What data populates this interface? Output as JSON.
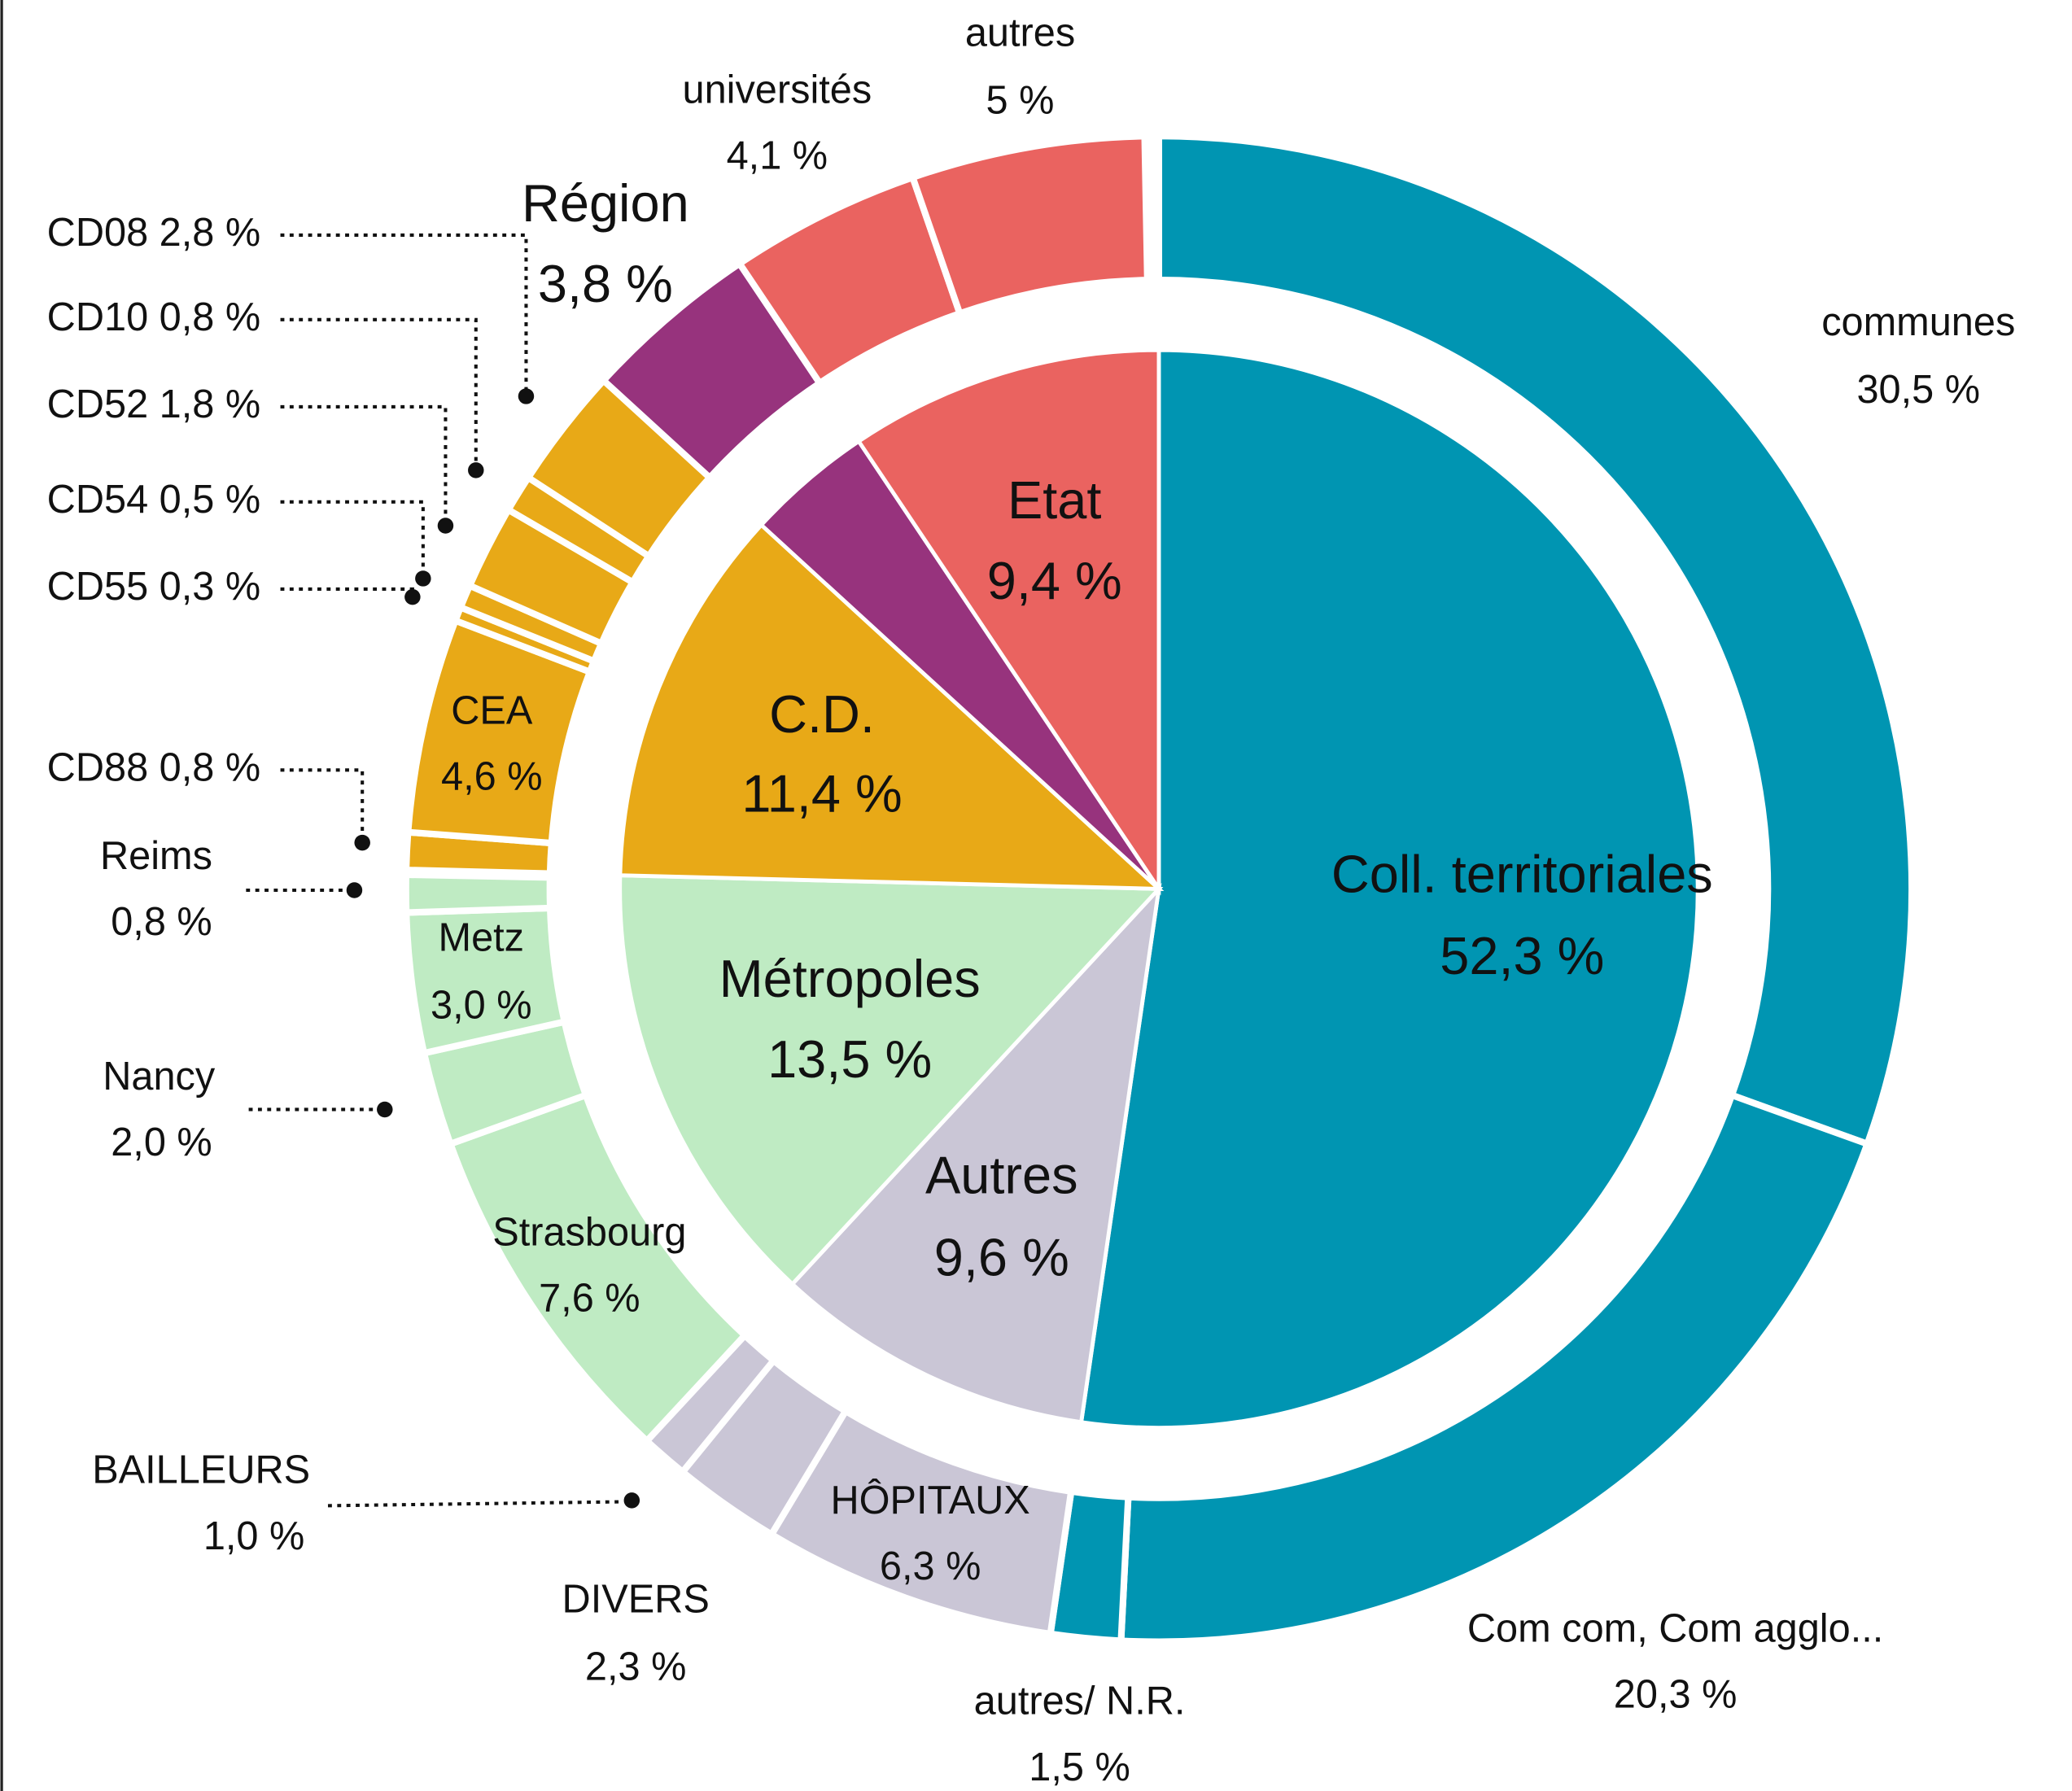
{
  "chart_data": {
    "type": "sunburst",
    "segments": [
      {
        "name": "Coll. territoriales",
        "value": 52.3,
        "value_label": "52,3 %",
        "color": "#0095b2",
        "children": [
          {
            "name": "communes",
            "value": 30.5,
            "value_label": "30,5 %"
          },
          {
            "name": "Com com, Com agglo...",
            "value": 20.3,
            "value_label": "20,3 %"
          },
          {
            "name": "autres/ N.R.",
            "value": 1.5,
            "value_label": "1,5 %"
          }
        ]
      },
      {
        "name": "Autres",
        "value": 9.6,
        "value_label": "9,6 %",
        "color": "#cac6d6",
        "children": [
          {
            "name": "HÔPITAUX",
            "value": 6.3,
            "value_label": "6,3 %"
          },
          {
            "name": "DIVERS",
            "value": 2.3,
            "value_label": "2,3 %"
          },
          {
            "name": "BAILLEURS",
            "value": 1.0,
            "value_label": "1,0 %"
          }
        ]
      },
      {
        "name": "Métropoles",
        "value": 13.5,
        "value_label": "13,5 %",
        "color": "#bfebc3",
        "children": [
          {
            "name": "Strasbourg",
            "value": 7.6,
            "value_label": "7,6 %"
          },
          {
            "name": "Nancy",
            "value": 2.0,
            "value_label": "2,0 %"
          },
          {
            "name": "Metz",
            "value": 3.0,
            "value_label": "3,0 %"
          },
          {
            "name": "Reims",
            "value": 0.8,
            "value_label": "0,8 %"
          }
        ]
      },
      {
        "name": "C.D.",
        "value": 11.4,
        "value_label": "11,4 %",
        "color": "#e8a917",
        "children": [
          {
            "name": "CD88",
            "value": 0.8,
            "value_label": "0,8 %"
          },
          {
            "name": "CEA",
            "value": 4.6,
            "value_label": "4,6 %"
          },
          {
            "name": "CD55",
            "value": 0.3,
            "value_label": "0,3 %"
          },
          {
            "name": "CD54",
            "value": 0.5,
            "value_label": "0,5 %"
          },
          {
            "name": "CD52",
            "value": 1.8,
            "value_label": "1,8 %"
          },
          {
            "name": "CD10",
            "value": 0.8,
            "value_label": "0,8 %"
          },
          {
            "name": "CD08",
            "value": 2.8,
            "value_label": "2,8 %"
          }
        ]
      },
      {
        "name": "Région",
        "value": 3.8,
        "value_label": "3,8 %",
        "color": "#97337d",
        "children": []
      },
      {
        "name": "Etat",
        "value": 9.4,
        "value_label": "9,4 %",
        "color": "#ea6360",
        "children": [
          {
            "name": "universités",
            "value": 4.1,
            "value_label": "4,1 %"
          },
          {
            "name": "autres",
            "value": 5,
            "value_label": "5 %"
          }
        ]
      }
    ]
  }
}
